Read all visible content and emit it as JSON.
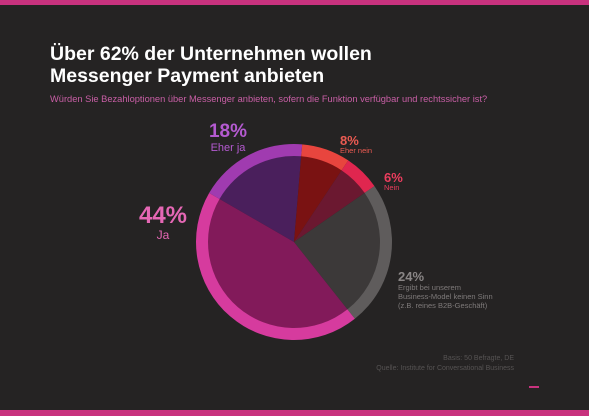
{
  "title_line1": "Über 62% der Unternehmen wollen",
  "title_line2": "Messenger Payment anbieten",
  "subtitle": "Würden Sie Bezahloptionen über Messenger anbieten, sofern die Funktion verfügbar und rechtssicher ist?",
  "source_line1": "Basis: 50 Befragte, DE",
  "source_line2": "Quelle: Institute for Conversational Business",
  "chart_data": {
    "type": "pie",
    "title": "Über 62% der Unternehmen wollen Messenger Payment anbieten",
    "slices": [
      {
        "label": "Eher ja",
        "value": 18,
        "value_label": "18%",
        "color": "#a03bb0",
        "fill": "#4a1f5c"
      },
      {
        "label": "Eher nein",
        "value": 8,
        "value_label": "8%",
        "color": "#e8453e",
        "fill": "#7a1212"
      },
      {
        "label": "Nein",
        "value": 6,
        "value_label": "6%",
        "color": "#e0264f",
        "fill": "#6b1830"
      },
      {
        "label": "Ergibt bei unserem Business-Model keinen Sinn (z.B. reines B2B-Geschäft)",
        "label_lines": [
          "Ergibt bei unserem",
          "Business-Model keinen Sinn",
          "(z.B. reines B2B-Geschäft)"
        ],
        "value": 24,
        "value_label": "24%",
        "color": "#5f5c5c",
        "fill": "#3c3939"
      },
      {
        "label": "Ja",
        "value": 44,
        "value_label": "44%",
        "color": "#d63b9e",
        "fill": "#821a5a"
      }
    ]
  }
}
